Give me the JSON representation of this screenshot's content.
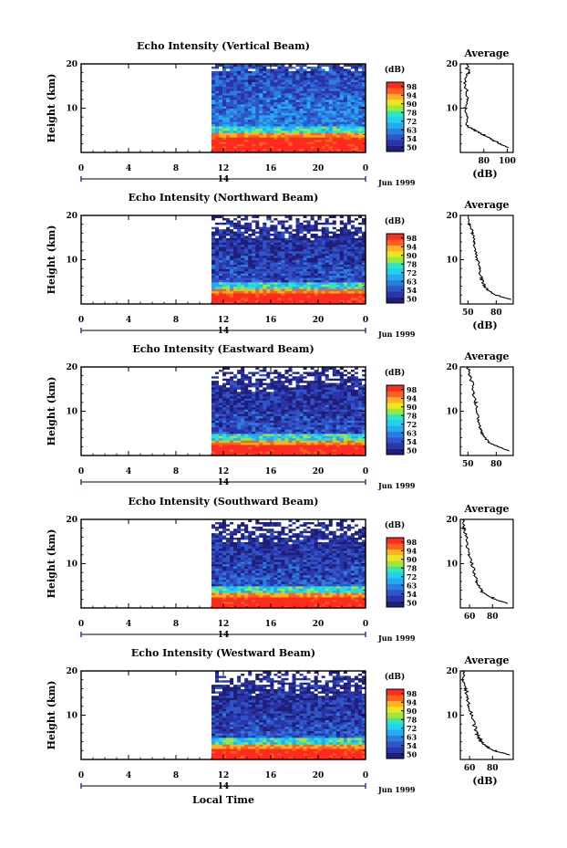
{
  "figure": {
    "shared_xlabel": "Local Time",
    "date_label": "Jun 1999",
    "day_marker": "14",
    "colorbar_unit": "(dB)",
    "colorbar_ticks": [
      "50",
      "54",
      "63",
      "72",
      "78",
      "90",
      "94",
      "98"
    ]
  },
  "colormap": [
    "#1f1f7a",
    "#2a35a8",
    "#2f55c8",
    "#2b7ee0",
    "#27a8f0",
    "#22d0f0",
    "#30e6c0",
    "#9ae840",
    "#e8e820",
    "#ffb020",
    "#ff6020",
    "#ff2a20"
  ],
  "chart_data": [
    {
      "type": "heatmap",
      "title": "Echo Intensity (Vertical Beam)",
      "ylabel": "Height (km)",
      "xticks": [
        "0",
        "4",
        "8",
        "12",
        "16",
        "20",
        "0"
      ],
      "yticks": [
        "20",
        "10"
      ],
      "xlim": [
        0,
        24
      ],
      "ylim": [
        0,
        20
      ],
      "data_start_hour": 11,
      "surface_layer_top_km": 4.5,
      "profile": {
        "title": "Average",
        "xlabel": "(dB)",
        "xticks": [
          "80",
          "100"
        ],
        "xlim": [
          60,
          105
        ],
        "heights": [
          1,
          2,
          3,
          4,
          5,
          6,
          8,
          10,
          12,
          14,
          16,
          18,
          20
        ],
        "values": [
          100,
          94,
          86,
          80,
          72,
          66,
          65,
          64,
          66,
          65,
          64,
          67,
          65
        ]
      }
    },
    {
      "type": "heatmap",
      "title": "Echo Intensity (Northward Beam)",
      "ylabel": "Height (km)",
      "xticks": [
        "0",
        "4",
        "8",
        "12",
        "16",
        "20",
        "0"
      ],
      "yticks": [
        "20",
        "10"
      ],
      "xlim": [
        0,
        24
      ],
      "ylim": [
        0,
        20
      ],
      "data_start_hour": 11,
      "surface_layer_top_km": 3.5,
      "profile": {
        "title": "Average",
        "xlabel": "(dB)",
        "xticks": [
          "50",
          "80"
        ],
        "xlim": [
          42,
          98
        ],
        "heights": [
          1,
          2,
          3,
          4,
          5,
          6,
          8,
          10,
          12,
          14,
          16,
          18,
          20
        ],
        "values": [
          95,
          80,
          72,
          68,
          66,
          64,
          62,
          60,
          58,
          57,
          55,
          52,
          50
        ]
      }
    },
    {
      "type": "heatmap",
      "title": "Echo Intensity (Eastward Beam)",
      "ylabel": "Height (km)",
      "xticks": [
        "0",
        "4",
        "8",
        "12",
        "16",
        "20",
        "0"
      ],
      "yticks": [
        "20",
        "10"
      ],
      "xlim": [
        0,
        24
      ],
      "ylim": [
        0,
        20
      ],
      "data_start_hour": 11,
      "surface_layer_top_km": 3.5,
      "profile": {
        "title": "Average",
        "xlabel": "",
        "xticks": [
          "50",
          "80"
        ],
        "xlim": [
          42,
          98
        ],
        "heights": [
          1,
          2,
          3,
          4,
          5,
          6,
          8,
          10,
          12,
          14,
          16,
          18,
          20
        ],
        "values": [
          95,
          82,
          72,
          68,
          65,
          63,
          61,
          60,
          58,
          56,
          55,
          52,
          50
        ]
      }
    },
    {
      "type": "heatmap",
      "title": "Echo Intensity (Southward Beam)",
      "ylabel": "Height (km)",
      "xticks": [
        "0",
        "4",
        "8",
        "12",
        "16",
        "20",
        "0"
      ],
      "yticks": [
        "20",
        "10"
      ],
      "xlim": [
        0,
        24
      ],
      "ylim": [
        0,
        20
      ],
      "data_start_hour": 11,
      "surface_layer_top_km": 3.5,
      "profile": {
        "title": "Average",
        "xlabel": "",
        "xticks": [
          "60",
          "80"
        ],
        "xlim": [
          52,
          98
        ],
        "heights": [
          1,
          2,
          3,
          4,
          5,
          6,
          8,
          10,
          12,
          14,
          16,
          18,
          20
        ],
        "values": [
          94,
          82,
          74,
          70,
          68,
          66,
          64,
          62,
          60,
          58,
          57,
          55,
          54
        ]
      }
    },
    {
      "type": "heatmap",
      "title": "Echo Intensity (Westward Beam)",
      "ylabel": "Height (km)",
      "xticks": [
        "0",
        "4",
        "8",
        "12",
        "16",
        "20",
        "0"
      ],
      "yticks": [
        "20",
        "10"
      ],
      "xlim": [
        0,
        24
      ],
      "ylim": [
        0,
        20
      ],
      "data_start_hour": 11,
      "surface_layer_top_km": 3.5,
      "profile": {
        "title": "Average",
        "xlabel": "(dB)",
        "xticks": [
          "60",
          "80"
        ],
        "xlim": [
          52,
          98
        ],
        "heights": [
          1,
          2,
          3,
          4,
          5,
          6,
          8,
          10,
          12,
          14,
          16,
          18,
          20
        ],
        "values": [
          94,
          82,
          74,
          70,
          68,
          66,
          64,
          62,
          60,
          58,
          57,
          55,
          54
        ]
      }
    }
  ]
}
